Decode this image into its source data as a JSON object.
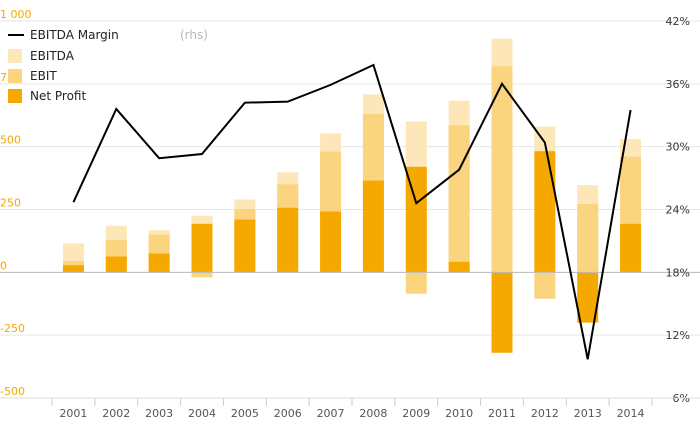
{
  "chart_data": {
    "type": "bar",
    "categories": [
      "2001",
      "2002",
      "2003",
      "2004",
      "2005",
      "2006",
      "2007",
      "2008",
      "2009",
      "2010",
      "2011",
      "2012",
      "2013",
      "2014"
    ],
    "series": [
      {
        "name": "EBITDA",
        "kind": "bar",
        "values": [
          115,
          185,
          168,
          225,
          290,
          398,
          553,
          708,
          600,
          683,
          930,
          580,
          347,
          530
        ]
      },
      {
        "name": "EBIT",
        "kind": "bar",
        "values": [
          45,
          128,
          150,
          -20,
          252,
          350,
          480,
          630,
          -85,
          585,
          820,
          -105,
          272,
          460
        ]
      },
      {
        "name": "Net Profit",
        "kind": "bar",
        "values": [
          28,
          63,
          75,
          193,
          210,
          257,
          242,
          365,
          420,
          42,
          -320,
          482,
          -200,
          193
        ]
      },
      {
        "name": "EBITDA Margin",
        "name_note": "(rhs)",
        "kind": "line",
        "axis": "right",
        "values": [
          24.7,
          33.6,
          28.9,
          29.3,
          34.2,
          34.3,
          35.9,
          37.8,
          24.6,
          27.8,
          36.0,
          30.4,
          9.7,
          33.5
        ]
      }
    ],
    "left_axis": {
      "ylim": [
        -500,
        1000
      ],
      "ticks": [
        1000,
        750,
        500,
        250,
        0,
        -250,
        -500
      ],
      "tick_labels": [
        "1 000",
        "750",
        "500",
        "250",
        "0",
        "-250",
        "-500"
      ]
    },
    "right_axis": {
      "ylim": [
        6,
        42
      ],
      "ticks": [
        42,
        36,
        30,
        24,
        18,
        12,
        6
      ],
      "tick_labels": [
        "42%",
        "36%",
        "30%",
        "24%",
        "18%",
        "12%",
        "6%"
      ]
    },
    "grid": true,
    "legend_position": "top-left",
    "colors": {
      "EBITDA": "#fde7b8",
      "EBIT": "#fbd480",
      "Net Profit": "#f5a800",
      "EBITDA Margin": "#000000",
      "left_ticks": "#f5a800",
      "grid": "#e6e6e6"
    }
  }
}
